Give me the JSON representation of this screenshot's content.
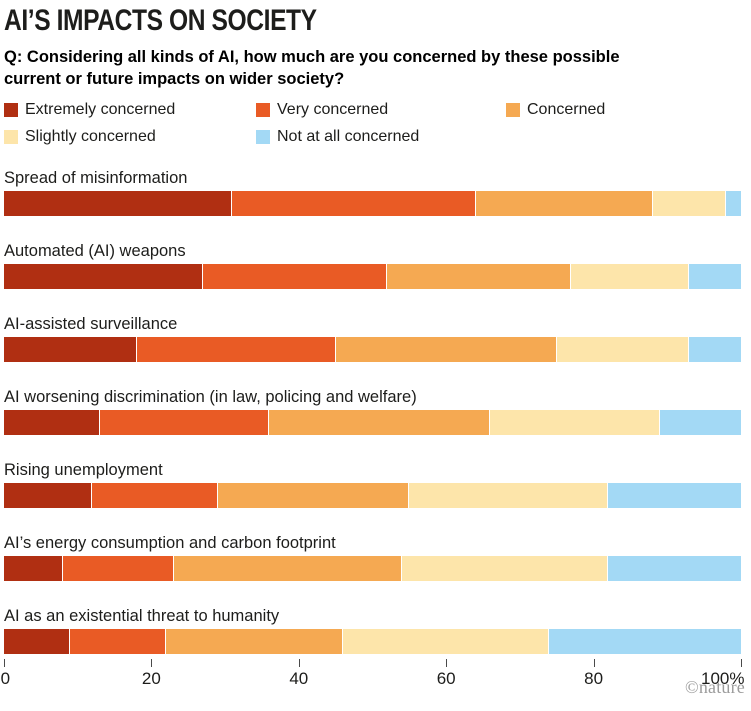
{
  "header": {
    "title": "AI’S IMPACTS ON SOCIETY",
    "question": "Q: Considering all kinds of AI, how much are you concerned by these possible current or future impacts on wider society?"
  },
  "legend": {
    "items": [
      {
        "label": "Extremely concerned",
        "color": "#B02F12"
      },
      {
        "label": "Very concerned",
        "color": "#E95B25"
      },
      {
        "label": "Concerned",
        "color": "#F5A952"
      },
      {
        "label": "Slightly concerned",
        "color": "#FDE5AA"
      },
      {
        "label": "Not at all concerned",
        "color": "#A3D9F5"
      }
    ]
  },
  "chart_data": {
    "type": "bar",
    "orientation": "horizontal",
    "stacked": true,
    "unit": "%",
    "title": "AI’S IMPACTS ON SOCIETY",
    "subtitle": "Q: Considering all kinds of AI, how much are you concerned by these possible current or future impacts on wider society?",
    "categories": [
      "Spread of misinformation",
      "Automated (AI) weapons",
      "AI-assisted surveillance",
      "AI worsening discrimination (in law, policing and welfare)",
      "Rising unemployment",
      "AI’s energy consumption and carbon footprint",
      "AI as an existential threat to humanity"
    ],
    "series": [
      {
        "name": "Extremely concerned",
        "color": "#B02F12",
        "values": [
          31,
          27,
          18,
          13,
          12,
          8,
          9
        ]
      },
      {
        "name": "Very concerned",
        "color": "#E95B25",
        "values": [
          33,
          25,
          27,
          23,
          17,
          15,
          13
        ]
      },
      {
        "name": "Concerned",
        "color": "#F5A952",
        "values": [
          24,
          25,
          30,
          30,
          26,
          31,
          24
        ]
      },
      {
        "name": "Slightly concerned",
        "color": "#FDE5AA",
        "values": [
          10,
          16,
          18,
          23,
          27,
          28,
          28
        ]
      },
      {
        "name": "Not at all concerned",
        "color": "#A3D9F5",
        "values": [
          2,
          7,
          7,
          11,
          18,
          18,
          26
        ]
      }
    ],
    "xlim": [
      0,
      100
    ],
    "x_ticks": [
      {
        "value": 0,
        "label": "0"
      },
      {
        "value": 20,
        "label": "20"
      },
      {
        "value": 40,
        "label": "40"
      },
      {
        "value": 60,
        "label": "60"
      },
      {
        "value": 80,
        "label": "80"
      },
      {
        "value": 100,
        "label": "100%"
      }
    ],
    "grid": false,
    "legend_position": "top"
  },
  "footer": {
    "credit": "©nature"
  }
}
